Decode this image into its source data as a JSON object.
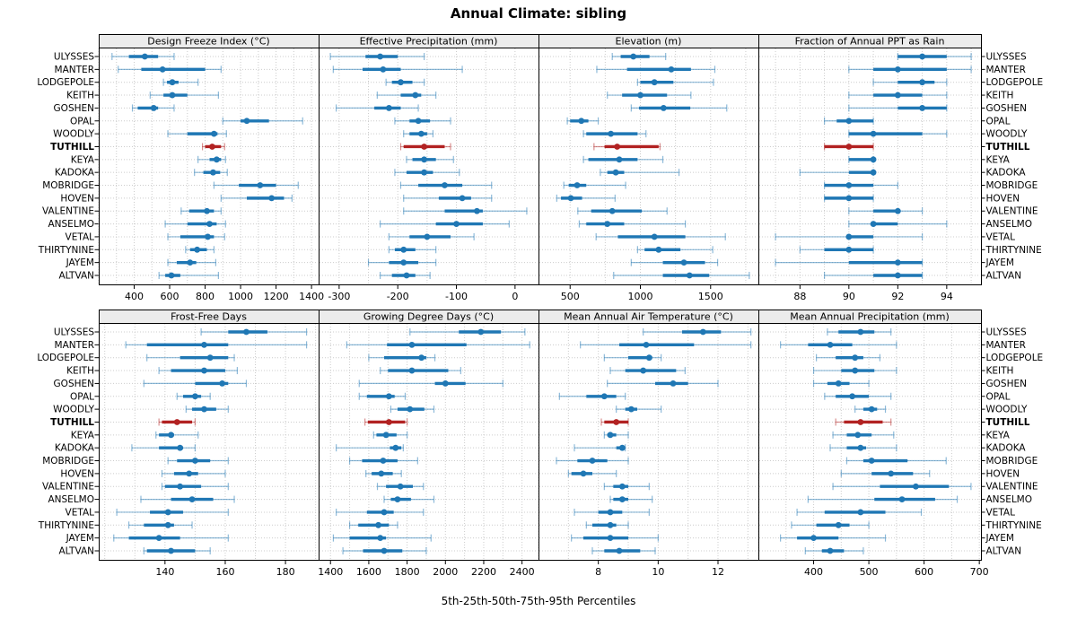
{
  "title": "Annual Climate: sibling",
  "caption": "5th-25th-50th-75th-95th Percentiles",
  "highlight_station": "TUTHILL",
  "stations": [
    "ULYSSES",
    "MANTER",
    "LODGEPOLE",
    "KEITH",
    "GOSHEN",
    "OPAL",
    "WOODLY",
    "TUTHILL",
    "KEYA",
    "KADOKA",
    "MOBRIDGE",
    "HOVEN",
    "VALENTINE",
    "ANSELMO",
    "VETAL",
    "THIRTYNINE",
    "JAYEM",
    "ALTVAN"
  ],
  "colors": {
    "series": "#1f77b4",
    "highlight": "#b22222",
    "grid": "#cccccc",
    "strip_bg": "#ececec",
    "border": "#000000",
    "text": "#000000"
  },
  "chart_data": [
    {
      "type": "dotplot-percentiles",
      "panel_title": "Design Freeze Index (°C)",
      "row": 1,
      "col": 1,
      "xlim": [
        200,
        1440
      ],
      "xticks": [
        400,
        600,
        800,
        1000,
        1200,
        1400
      ],
      "grid_interval": 100,
      "percentiles": [
        5,
        25,
        50,
        75,
        95
      ],
      "values": [
        [
          275,
          370,
          460,
          535,
          625
        ],
        [
          310,
          440,
          560,
          800,
          890
        ],
        [
          565,
          585,
          615,
          650,
          760
        ],
        [
          490,
          565,
          615,
          700,
          875
        ],
        [
          390,
          420,
          510,
          535,
          625
        ],
        [
          900,
          1000,
          1035,
          1160,
          1350
        ],
        [
          590,
          700,
          850,
          870,
          920
        ],
        [
          785,
          800,
          840,
          890,
          910
        ],
        [
          760,
          825,
          865,
          890,
          915
        ],
        [
          740,
          790,
          845,
          885,
          925
        ],
        [
          850,
          990,
          1110,
          1200,
          1325
        ],
        [
          890,
          1035,
          1175,
          1245,
          1290
        ],
        [
          665,
          710,
          810,
          850,
          890
        ],
        [
          575,
          700,
          825,
          865,
          915
        ],
        [
          590,
          660,
          815,
          850,
          910
        ],
        [
          690,
          715,
          755,
          810,
          850
        ],
        [
          590,
          640,
          715,
          750,
          860
        ],
        [
          540,
          575,
          610,
          660,
          875
        ]
      ]
    },
    {
      "type": "dotplot-percentiles",
      "panel_title": "Effective Precipitation (mm)",
      "row": 1,
      "col": 2,
      "xlim": [
        -335,
        40
      ],
      "xticks": [
        -300,
        -200,
        -100,
        0
      ],
      "grid_interval": 50,
      "percentiles": [
        5,
        25,
        50,
        75,
        95
      ],
      "values": [
        [
          -315,
          -255,
          -230,
          -200,
          -155
        ],
        [
          -310,
          -260,
          -225,
          -195,
          -90
        ],
        [
          -220,
          -210,
          -195,
          -175,
          -155
        ],
        [
          -235,
          -195,
          -170,
          -160,
          -135
        ],
        [
          -305,
          -240,
          -215,
          -195,
          -165
        ],
        [
          -205,
          -180,
          -165,
          -145,
          -110
        ],
        [
          -190,
          -180,
          -160,
          -150,
          -140
        ],
        [
          -195,
          -190,
          -155,
          -120,
          -110
        ],
        [
          -185,
          -175,
          -155,
          -135,
          -105
        ],
        [
          -205,
          -185,
          -155,
          -140,
          -95
        ],
        [
          -195,
          -165,
          -120,
          -90,
          -40
        ],
        [
          -190,
          -130,
          -90,
          -75,
          -40
        ],
        [
          -190,
          -120,
          -65,
          -55,
          20
        ],
        [
          -230,
          -135,
          -100,
          -55,
          -10
        ],
        [
          -215,
          -180,
          -150,
          -110,
          -70
        ],
        [
          -215,
          -205,
          -190,
          -170,
          -135
        ],
        [
          -250,
          -215,
          -190,
          -165,
          -135
        ],
        [
          -230,
          -210,
          -185,
          -170,
          -145
        ]
      ]
    },
    {
      "type": "dotplot-percentiles",
      "panel_title": "Elevation (m)",
      "row": 1,
      "col": 3,
      "xlim": [
        275,
        1840
      ],
      "xticks": [
        500,
        1000,
        1500
      ],
      "grid_interval": 250,
      "percentiles": [
        5,
        25,
        50,
        75,
        95
      ],
      "values": [
        [
          800,
          860,
          950,
          1065,
          1180
        ],
        [
          690,
          905,
          1220,
          1360,
          1530
        ],
        [
          980,
          1000,
          1100,
          1235,
          1520
        ],
        [
          765,
          870,
          1000,
          1190,
          1360
        ],
        [
          935,
          990,
          1165,
          1355,
          1615
        ],
        [
          480,
          500,
          580,
          630,
          700
        ],
        [
          595,
          615,
          790,
          980,
          1040
        ],
        [
          670,
          745,
          835,
          1130,
          1140
        ],
        [
          595,
          630,
          850,
          980,
          1160
        ],
        [
          715,
          765,
          825,
          885,
          1275
        ],
        [
          455,
          490,
          550,
          615,
          895
        ],
        [
          405,
          435,
          505,
          585,
          820
        ],
        [
          555,
          650,
          800,
          1010,
          1190
        ],
        [
          565,
          615,
          765,
          885,
          1320
        ],
        [
          685,
          840,
          1100,
          1320,
          1605
        ],
        [
          980,
          1030,
          1130,
          1285,
          1515
        ],
        [
          935,
          1160,
          1310,
          1460,
          1550
        ],
        [
          810,
          1160,
          1350,
          1490,
          1775
        ]
      ]
    },
    {
      "type": "dotplot-percentiles",
      "panel_title": "Fraction of Annual PPT as Rain",
      "row": 1,
      "col": 4,
      "xlim": [
        86.3,
        95.4
      ],
      "xticks": [
        88,
        90,
        92,
        94
      ],
      "grid_interval": 1,
      "percentiles": [
        5,
        25,
        50,
        75,
        95
      ],
      "values": [
        [
          92,
          92,
          93,
          94,
          95
        ],
        [
          90,
          91,
          92,
          94,
          95
        ],
        [
          91,
          92,
          93,
          93.5,
          94
        ],
        [
          90,
          91,
          92,
          93,
          94
        ],
        [
          90,
          92,
          93,
          94,
          94
        ],
        [
          89,
          89.5,
          90,
          91,
          91
        ],
        [
          90,
          90,
          91,
          93,
          94
        ],
        [
          89,
          89,
          90,
          91,
          91
        ],
        [
          90,
          90,
          91,
          91,
          91
        ],
        [
          88,
          90,
          91,
          91,
          91
        ],
        [
          89,
          89,
          90,
          91,
          92
        ],
        [
          89,
          89,
          90,
          91,
          91
        ],
        [
          90,
          91,
          92,
          92,
          93
        ],
        [
          90,
          91,
          91,
          92,
          94
        ],
        [
          87,
          90,
          90,
          91,
          93
        ],
        [
          88,
          89,
          90,
          91,
          91
        ],
        [
          87,
          90,
          92,
          93,
          93
        ],
        [
          89,
          91,
          92,
          93,
          93
        ]
      ]
    },
    {
      "type": "dotplot-percentiles",
      "panel_title": "Frost-Free Days",
      "row": 2,
      "col": 1,
      "xlim": [
        118,
        191
      ],
      "xticks": [
        140,
        160,
        180
      ],
      "grid_interval": 10,
      "percentiles": [
        5,
        25,
        50,
        75,
        95
      ],
      "values": [
        [
          152,
          161,
          167,
          174,
          187
        ],
        [
          127,
          134,
          153,
          161,
          187
        ],
        [
          134,
          145,
          155,
          161,
          163
        ],
        [
          138,
          142,
          153,
          160,
          164
        ],
        [
          133,
          150,
          159,
          161,
          167
        ],
        [
          144,
          146,
          150,
          152,
          155
        ],
        [
          147,
          149,
          153,
          157,
          161
        ],
        [
          138,
          139,
          144,
          149,
          150
        ],
        [
          137,
          138,
          142,
          143,
          151
        ],
        [
          129,
          138,
          145,
          146,
          150
        ],
        [
          141,
          144,
          150,
          155,
          161
        ],
        [
          139,
          143,
          148,
          151,
          160
        ],
        [
          139,
          140,
          145,
          152,
          161
        ],
        [
          132,
          142,
          149,
          156,
          163
        ],
        [
          124,
          135,
          141,
          146,
          161
        ],
        [
          128,
          133,
          141,
          143,
          149
        ],
        [
          123,
          128,
          138,
          145,
          161
        ],
        [
          133,
          134,
          142,
          150,
          155
        ]
      ]
    },
    {
      "type": "dotplot-percentiles",
      "panel_title": "Growing Degree Days (°C)",
      "row": 2,
      "col": 2,
      "xlim": [
        1338,
        2486
      ],
      "xticks": [
        1400,
        1600,
        1800,
        2000,
        2200,
        2400
      ],
      "grid_interval": 100,
      "percentiles": [
        5,
        25,
        50,
        75,
        95
      ],
      "values": [
        [
          1815,
          2070,
          2185,
          2290,
          2415
        ],
        [
          1485,
          1695,
          1825,
          2110,
          2440
        ],
        [
          1600,
          1680,
          1875,
          1900,
          1945
        ],
        [
          1660,
          1700,
          1825,
          2015,
          2080
        ],
        [
          1550,
          1945,
          2000,
          2105,
          2300
        ],
        [
          1550,
          1590,
          1705,
          1735,
          1790
        ],
        [
          1715,
          1750,
          1815,
          1890,
          1940
        ],
        [
          1580,
          1595,
          1705,
          1790,
          1800
        ],
        [
          1625,
          1640,
          1690,
          1745,
          1800
        ],
        [
          1430,
          1710,
          1740,
          1770,
          1780
        ],
        [
          1500,
          1565,
          1675,
          1750,
          1855
        ],
        [
          1585,
          1615,
          1665,
          1725,
          1770
        ],
        [
          1645,
          1690,
          1765,
          1830,
          1885
        ],
        [
          1680,
          1715,
          1750,
          1820,
          1940
        ],
        [
          1430,
          1590,
          1680,
          1730,
          1885
        ],
        [
          1500,
          1545,
          1650,
          1705,
          1750
        ],
        [
          1415,
          1500,
          1660,
          1690,
          1925
        ],
        [
          1465,
          1570,
          1680,
          1775,
          1900
        ]
      ]
    },
    {
      "type": "dotplot-percentiles",
      "panel_title": "Mean Annual Air Temperature (°C)",
      "row": 2,
      "col": 3,
      "xlim": [
        6,
        13.35
      ],
      "xticks": [
        8,
        10,
        12
      ],
      "grid_interval": 1,
      "percentiles": [
        5,
        25,
        50,
        75,
        95
      ],
      "values": [
        [
          9.5,
          10.8,
          11.5,
          12.1,
          13.1
        ],
        [
          7.4,
          8.7,
          9.6,
          11.2,
          13.1
        ],
        [
          8.2,
          9.0,
          9.7,
          9.8,
          10.1
        ],
        [
          8.4,
          8.9,
          9.5,
          10.6,
          10.9
        ],
        [
          8.3,
          9.9,
          10.5,
          11.0,
          12.0
        ],
        [
          6.7,
          7.6,
          8.2,
          8.6,
          8.9
        ],
        [
          8.6,
          8.9,
          9.1,
          9.3,
          10.1
        ],
        [
          8.1,
          8.2,
          8.6,
          9.0,
          9.0
        ],
        [
          8.2,
          8.3,
          8.4,
          8.6,
          9.0
        ],
        [
          7.2,
          8.6,
          8.8,
          8.9,
          8.9
        ],
        [
          6.6,
          7.3,
          7.8,
          8.3,
          9.0
        ],
        [
          7.0,
          7.1,
          7.5,
          7.8,
          8.6
        ],
        [
          8.2,
          8.5,
          8.8,
          9.0,
          9.7
        ],
        [
          8.4,
          8.5,
          8.8,
          9.0,
          9.8
        ],
        [
          7.2,
          8.0,
          8.4,
          8.8,
          9.7
        ],
        [
          7.6,
          7.8,
          8.4,
          8.6,
          9.0
        ],
        [
          7.1,
          7.5,
          8.4,
          9.0,
          10.0
        ],
        [
          7.8,
          8.2,
          8.7,
          9.4,
          9.9
        ]
      ]
    },
    {
      "type": "dotplot-percentiles",
      "panel_title": "Mean Annual Precipitation (mm)",
      "row": 2,
      "col": 4,
      "xlim": [
        300,
        703
      ],
      "xticks": [
        400,
        500,
        600,
        700
      ],
      "grid_interval": 50,
      "percentiles": [
        5,
        25,
        50,
        75,
        95
      ],
      "values": [
        [
          425,
          445,
          485,
          510,
          540
        ],
        [
          340,
          390,
          430,
          470,
          550
        ],
        [
          405,
          440,
          475,
          490,
          520
        ],
        [
          400,
          450,
          475,
          510,
          550
        ],
        [
          400,
          425,
          445,
          465,
          500
        ],
        [
          420,
          440,
          470,
          500,
          540
        ],
        [
          475,
          490,
          505,
          515,
          530
        ],
        [
          440,
          455,
          485,
          525,
          540
        ],
        [
          435,
          460,
          480,
          505,
          545
        ],
        [
          430,
          460,
          485,
          495,
          550
        ],
        [
          460,
          490,
          505,
          570,
          640
        ],
        [
          450,
          505,
          540,
          580,
          610
        ],
        [
          435,
          520,
          585,
          645,
          685
        ],
        [
          390,
          510,
          560,
          620,
          660
        ],
        [
          370,
          420,
          485,
          530,
          595
        ],
        [
          360,
          405,
          445,
          465,
          500
        ],
        [
          340,
          370,
          400,
          445,
          530
        ],
        [
          385,
          415,
          430,
          455,
          490
        ]
      ]
    }
  ]
}
